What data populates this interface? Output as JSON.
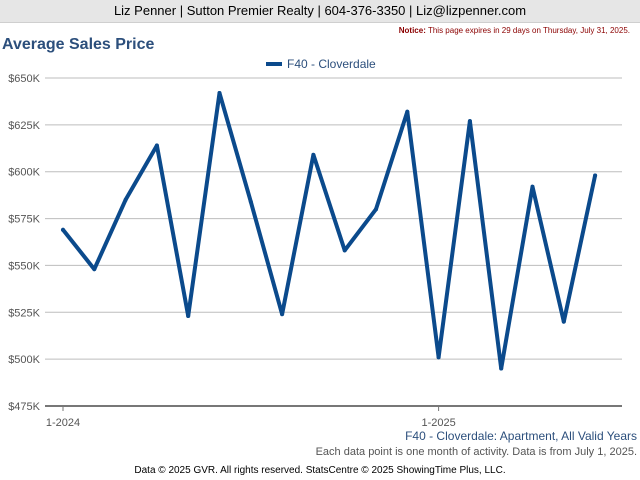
{
  "header": {
    "contact_line": "Liz Penner | Sutton Premier Realty | 604-376-3350 | Liz@lizpenner.com"
  },
  "notice": {
    "label": "Notice:",
    "text": "This page expires in 29 days on Thursday, July 31, 2025."
  },
  "chart_data": {
    "type": "line",
    "title": "Average Sales Price",
    "series": [
      {
        "name": "F40 - Cloverdale",
        "color": "#0b4a8c",
        "values": [
          569000,
          548000,
          585000,
          614000,
          523000,
          642000,
          584000,
          524000,
          609000,
          558000,
          580000,
          632000,
          501000,
          627000,
          495000,
          592000,
          520000,
          598000
        ]
      }
    ],
    "x_labels": [
      {
        "index": 0,
        "label": "1-2024"
      },
      {
        "index": 12,
        "label": "1-2025"
      }
    ],
    "y_ticks": [
      "$475K",
      "$500K",
      "$525K",
      "$550K",
      "$575K",
      "$600K",
      "$625K",
      "$650K"
    ],
    "ylim": [
      475000,
      650000
    ],
    "grid": true,
    "legend_position": "top-center"
  },
  "caption": "F40 - Cloverdale: Apartment, All Valid Years",
  "note": "Each data point is one month of activity. Data is from July 1, 2025.",
  "footer": "Data © 2025 GVR. All rights reserved. StatsCentre © 2025 ShowingTime Plus, LLC."
}
